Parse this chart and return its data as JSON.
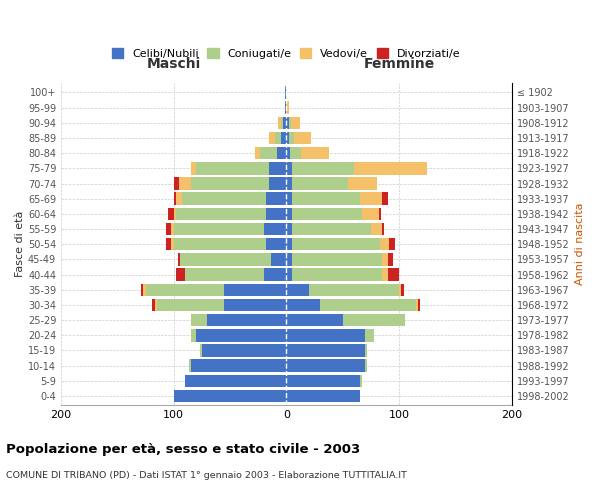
{
  "age_groups": [
    "0-4",
    "5-9",
    "10-14",
    "15-19",
    "20-24",
    "25-29",
    "30-34",
    "35-39",
    "40-44",
    "45-49",
    "50-54",
    "55-59",
    "60-64",
    "65-69",
    "70-74",
    "75-79",
    "80-84",
    "85-89",
    "90-94",
    "95-99",
    "100+"
  ],
  "birth_years": [
    "1998-2002",
    "1993-1997",
    "1988-1992",
    "1983-1987",
    "1978-1982",
    "1973-1977",
    "1968-1972",
    "1963-1967",
    "1958-1962",
    "1953-1957",
    "1948-1952",
    "1943-1947",
    "1938-1942",
    "1933-1937",
    "1928-1932",
    "1923-1927",
    "1918-1922",
    "1913-1917",
    "1908-1912",
    "1903-1907",
    "≤ 1902"
  ],
  "maschi": {
    "celibi": [
      100,
      90,
      85,
      75,
      80,
      70,
      55,
      55,
      20,
      14,
      18,
      20,
      18,
      18,
      15,
      15,
      8,
      5,
      3,
      1,
      1
    ],
    "coniugati": [
      0,
      0,
      1,
      2,
      5,
      15,
      60,
      70,
      70,
      80,
      82,
      80,
      80,
      75,
      70,
      65,
      15,
      5,
      2,
      0,
      0
    ],
    "vedovi": [
      0,
      0,
      0,
      0,
      0,
      0,
      2,
      2,
      0,
      0,
      2,
      2,
      2,
      5,
      10,
      5,
      5,
      5,
      2,
      0,
      0
    ],
    "divorziati": [
      0,
      0,
      0,
      0,
      0,
      0,
      2,
      2,
      8,
      2,
      5,
      5,
      5,
      2,
      5,
      0,
      0,
      0,
      0,
      0,
      0
    ]
  },
  "femmine": {
    "nubili": [
      65,
      65,
      70,
      70,
      70,
      50,
      30,
      20,
      5,
      5,
      5,
      5,
      5,
      5,
      5,
      5,
      3,
      2,
      2,
      0,
      0
    ],
    "coniugate": [
      0,
      2,
      2,
      2,
      8,
      55,
      85,
      80,
      80,
      80,
      78,
      70,
      62,
      60,
      50,
      55,
      10,
      5,
      2,
      0,
      0
    ],
    "vedove": [
      0,
      0,
      0,
      0,
      0,
      0,
      2,
      2,
      5,
      5,
      8,
      10,
      15,
      20,
      25,
      65,
      25,
      15,
      8,
      2,
      0
    ],
    "divorziate": [
      0,
      0,
      0,
      0,
      0,
      0,
      2,
      2,
      10,
      5,
      5,
      2,
      2,
      5,
      0,
      0,
      0,
      0,
      0,
      0,
      0
    ]
  },
  "colors": {
    "celibi_nubili": "#4472C4",
    "coniugati": "#AECF8B",
    "vedovi": "#F4C06A",
    "divorziati": "#CC2222"
  },
  "xlim": 200,
  "title": "Popolazione per età, sesso e stato civile - 2003",
  "subtitle": "COMUNE DI TRIBANO (PD) - Dati ISTAT 1° gennaio 2003 - Elaborazione TUTTITALIA.IT",
  "ylabel_left": "Fasce di età",
  "ylabel_right": "Anni di nascita",
  "xlabel_left": "Maschi",
  "xlabel_right": "Femmine",
  "bg_color": "#ffffff",
  "grid_color": "#cccccc"
}
